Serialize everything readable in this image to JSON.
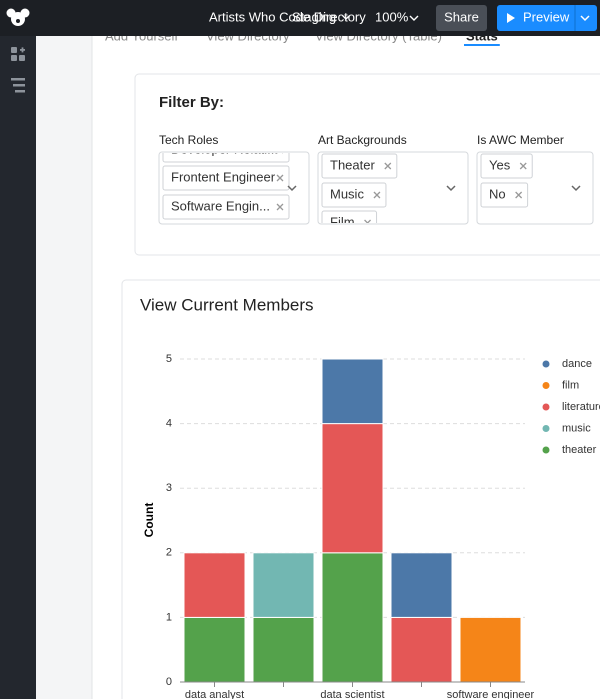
{
  "header": {
    "app_title": "Artists Who Code Directory",
    "env": "Staging",
    "zoom": "100%",
    "share": "Share",
    "preview": "Preview"
  },
  "tabs": [
    "Add Yourself",
    "View Directory",
    "View Directory (Table)",
    "Stats"
  ],
  "filter": {
    "title": "Filter By:",
    "groups": [
      {
        "label": "Tech Roles",
        "tags": [
          "Developer Relati...",
          "Frontent Engineer",
          "Software Engin..."
        ]
      },
      {
        "label": "Art Backgrounds",
        "tags": [
          "Theater",
          "Music",
          "Film"
        ]
      },
      {
        "label": "Is AWC Member",
        "tags": [
          "Yes",
          "No"
        ]
      }
    ]
  },
  "chart_data": {
    "type": "stacked_bar",
    "title": "View Current Members",
    "y_label": "Count",
    "categories": [
      "data analyst",
      null,
      "data scientist",
      null,
      "software engineer"
    ],
    "series": [
      {
        "name": "dance",
        "color": "#4c78a8",
        "values": [
          0,
          0,
          1,
          1,
          0
        ]
      },
      {
        "name": "film",
        "color": "#f58518",
        "values": [
          0,
          0,
          0,
          0,
          1
        ]
      },
      {
        "name": "literature",
        "color": "#e45756",
        "values": [
          1,
          0,
          2,
          1,
          0
        ]
      },
      {
        "name": "music",
        "color": "#72b7b2",
        "values": [
          0,
          1,
          0,
          0,
          0
        ]
      },
      {
        "name": "theater",
        "color": "#54a24b",
        "values": [
          1,
          1,
          2,
          0,
          0
        ]
      }
    ],
    "ylim": [
      0,
      5
    ],
    "yticks": [
      0,
      1,
      2,
      3,
      4,
      5
    ],
    "grid": true,
    "legend": "right"
  }
}
